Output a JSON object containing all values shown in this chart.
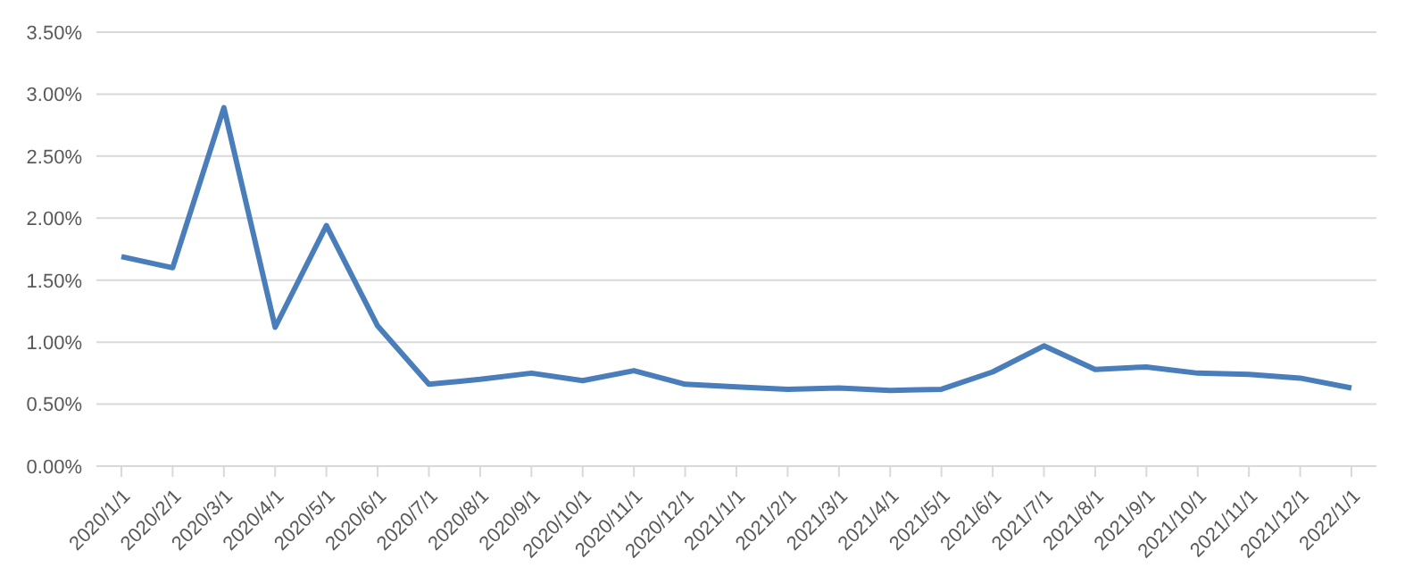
{
  "chart_data": {
    "type": "line",
    "categories": [
      "2020/1/1",
      "2020/2/1",
      "2020/3/1",
      "2020/4/1",
      "2020/5/1",
      "2020/6/1",
      "2020/7/1",
      "2020/8/1",
      "2020/9/1",
      "2020/10/1",
      "2020/11/1",
      "2020/12/1",
      "2021/1/1",
      "2021/2/1",
      "2021/3/1",
      "2021/4/1",
      "2021/5/1",
      "2021/6/1",
      "2021/7/1",
      "2021/8/1",
      "2021/9/1",
      "2021/10/1",
      "2021/11/1",
      "2021/12/1",
      "2022/1/1"
    ],
    "series": [
      {
        "color": "#4a7ebb",
        "values": [
          1.69,
          1.6,
          2.89,
          1.12,
          1.94,
          1.13,
          0.66,
          0.7,
          0.75,
          0.69,
          0.77,
          0.66,
          0.64,
          0.62,
          0.63,
          0.61,
          0.62,
          0.76,
          0.97,
          0.78,
          0.8,
          0.75,
          0.74,
          0.71,
          0.63
        ]
      }
    ],
    "ylim": [
      0,
      3.5
    ],
    "yticks": [
      {
        "value": 0,
        "label": "0.00%"
      },
      {
        "value": 0.5,
        "label": "0.50%"
      },
      {
        "value": 1,
        "label": "1.00%"
      },
      {
        "value": 1.5,
        "label": "1.50%"
      },
      {
        "value": 2,
        "label": "2.00%"
      },
      {
        "value": 2.5,
        "label": "2.50%"
      },
      {
        "value": 3,
        "label": "3.00%"
      },
      {
        "value": 3.5,
        "label": "3.50%"
      }
    ],
    "grid": "y",
    "marker": "none",
    "line_style": "solid"
  }
}
